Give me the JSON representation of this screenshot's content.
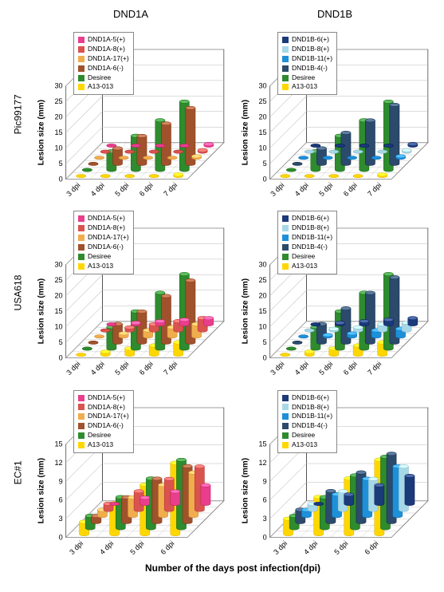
{
  "columns": [
    "DND1A",
    "DND1B"
  ],
  "rows": [
    "Pic99177",
    "USA618",
    "EC#1"
  ],
  "x_label": "Number of the days post infection(dpi)",
  "y_label": "Lesion size (mm)",
  "palettes": {
    "DND1A": {
      "DND1A-5(+)": "#e83e8c",
      "DND1A-8(+)": "#d9534f",
      "DND1A-17(+)": "#f0ad4e",
      "DND1A-6(-)": "#a0522d",
      "Desiree": "#2e8b2e",
      "A13-013": "#ffd700"
    },
    "DND1B": {
      "DND1B-6(+)": "#1a3a7a",
      "DND1B-8(+)": "#a6d8e8",
      "DND1B-11(+)": "#1e90d8",
      "DND1B-4(-)": "#2c4a6b",
      "Desiree": "#2e8b2e",
      "A13-013": "#ffd700"
    }
  },
  "charts": [
    {
      "col": "DND1A",
      "row": "Pic99177",
      "x": [
        "3 dpi",
        "4 dpi",
        "5 dpi",
        "6 dpi",
        "7 dpi"
      ],
      "ymax": 30,
      "ystep": 5,
      "series": {
        "DND1A-5(+)": [
          0,
          0,
          0,
          0,
          0.5
        ],
        "DND1A-8(+)": [
          0,
          0,
          0,
          0,
          0.5
        ],
        "DND1A-17(+)": [
          0,
          0,
          0,
          0,
          0.5
        ],
        "DND1A-6(-)": [
          0,
          5,
          9,
          13,
          18
        ],
        "Desiree": [
          0,
          6,
          11,
          16,
          22
        ],
        "A13-013": [
          0,
          0,
          0,
          0,
          0.5
        ]
      }
    },
    {
      "col": "DND1B",
      "row": "Pic99177",
      "x": [
        "3 dpi",
        "4 dpi",
        "5 dpi",
        "6 dpi",
        "7 dpi"
      ],
      "ymax": 30,
      "ystep": 5,
      "series": {
        "DND1B-6(+)": [
          0,
          0,
          0,
          0,
          0.5
        ],
        "DND1B-8(+)": [
          0,
          0,
          0,
          0,
          0.5
        ],
        "DND1B-11(+)": [
          0,
          0,
          0,
          0,
          0.5
        ],
        "DND1B-4(-)": [
          0,
          5,
          10,
          14,
          19
        ],
        "Desiree": [
          0,
          6,
          11,
          16,
          22
        ],
        "A13-013": [
          0,
          0,
          0,
          0,
          0.5
        ]
      }
    },
    {
      "col": "DND1A",
      "row": "USA618",
      "x": [
        "3 dpi",
        "4 dpi",
        "5 dpi",
        "6 dpi",
        "7 dpi"
      ],
      "ymax": 30,
      "ystep": 5,
      "series": {
        "DND1A-5(+)": [
          0,
          0.5,
          1,
          1.5,
          2
        ],
        "DND1A-8(+)": [
          0,
          1,
          2,
          3,
          4
        ],
        "DND1A-17(+)": [
          0,
          1,
          2,
          3,
          4
        ],
        "DND1A-6(-)": [
          0,
          6,
          10,
          15,
          20
        ],
        "Desiree": [
          0,
          7,
          12,
          18,
          24
        ],
        "A13-013": [
          0,
          1,
          2,
          3,
          4
        ]
      }
    },
    {
      "col": "DND1B",
      "row": "USA618",
      "x": [
        "3 dpi",
        "4 dpi",
        "5 dpi",
        "6 dpi",
        "7 dpi"
      ],
      "ymax": 30,
      "ystep": 5,
      "series": {
        "DND1B-6(+)": [
          0,
          0.5,
          1,
          1.5,
          2
        ],
        "DND1B-8(+)": [
          0,
          0.5,
          1,
          2,
          2.5
        ],
        "DND1B-11(+)": [
          0,
          0.5,
          1,
          2,
          2.5
        ],
        "DND1B-4(-)": [
          0,
          6,
          11,
          16,
          21
        ],
        "Desiree": [
          0,
          7,
          12,
          18,
          24
        ],
        "A13-013": [
          0,
          1,
          2,
          3,
          4
        ]
      }
    },
    {
      "col": "DND1A",
      "row": "EC#1",
      "x": [
        "3 dpi",
        "4 dpi",
        "5 dpi",
        "6 dpi"
      ],
      "ymax": 15,
      "ystep": 3,
      "series": {
        "DND1A-5(+)": [
          0,
          1,
          2,
          3
        ],
        "DND1A-8(+)": [
          1,
          3,
          5,
          7
        ],
        "DND1A-17(+)": [
          1,
          3,
          5,
          7
        ],
        "DND1A-6(-)": [
          1,
          4,
          7,
          9
        ],
        "Desiree": [
          2,
          5,
          8,
          11
        ],
        "A13-013": [
          2,
          5,
          8,
          11.5
        ]
      }
    },
    {
      "col": "DND1B",
      "row": "EC#1",
      "x": [
        "3 dpi",
        "4 dpi",
        "5 dpi",
        "6 dpi"
      ],
      "ymax": 15,
      "ystep": 3,
      "series": {
        "DND1B-6(+)": [
          0,
          1.5,
          3,
          4.5
        ],
        "DND1B-8(+)": [
          1,
          3,
          5,
          7
        ],
        "DND1B-11(+)": [
          1,
          3.5,
          6,
          8
        ],
        "DND1B-4(-)": [
          2,
          5,
          8,
          11
        ],
        "Desiree": [
          2,
          5,
          8.5,
          11.5
        ],
        "A13-013": [
          2.5,
          6,
          9,
          12
        ]
      }
    }
  ],
  "style": {
    "floor_stroke": "#888888",
    "grid_stroke": "#bbbbbb",
    "axis_stroke": "#333333",
    "disc_ry_ratio": 0.35
  }
}
